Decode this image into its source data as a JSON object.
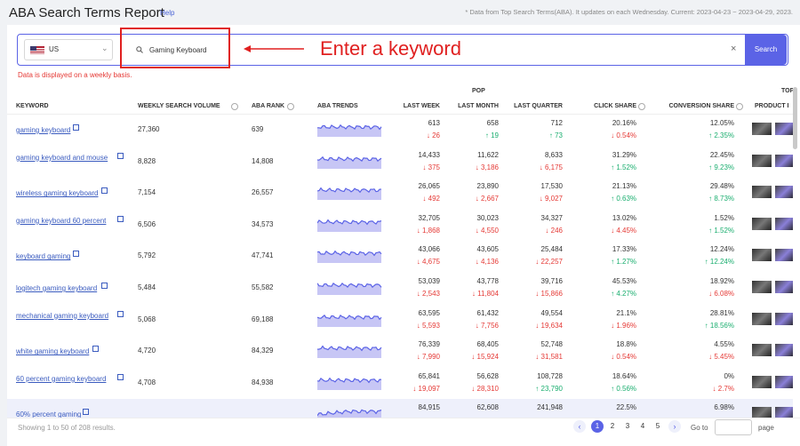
{
  "header": {
    "title": "ABA Search Terms Report",
    "help": "Help",
    "note": "* Data from Top Search Terms(ABA). It updates on each Wednesday. Current: 2023-04-23 ~ 2023-04-29, 2023."
  },
  "search": {
    "country": "US",
    "keyword": "Gaming Keyboard",
    "button": "Search",
    "hint": "Data is displayed on a weekly basis."
  },
  "annotation": "Enter a keyword",
  "table": {
    "groups": {
      "pop": "POP",
      "top": "TOP"
    },
    "columns": [
      "KEYWORD",
      "WEEKLY SEARCH VOLUME",
      "ABA RANK",
      "ABA TRENDS",
      "LAST WEEK",
      "LAST MONTH",
      "LAST QUARTER",
      "CLICK SHARE",
      "CONVERSION SHARE",
      "PRODUCT I"
    ],
    "rows": [
      {
        "keyword": "gaming keyboard",
        "volume": "27,360",
        "rank": "639",
        "last_week": [
          "613",
          "↓ 26"
        ],
        "last_month": [
          "658",
          "↑ 19"
        ],
        "last_quarter": [
          "712",
          "↑ 73"
        ],
        "click_share": [
          "20.16%",
          "↓ 0.54%"
        ],
        "conversion_share": [
          "12.05%",
          "↑ 2.35%"
        ]
      },
      {
        "keyword": "gaming keyboard and mouse",
        "volume": "8,828",
        "rank": "14,808",
        "last_week": [
          "14,433",
          "↓ 375"
        ],
        "last_month": [
          "11,622",
          "↓ 3,186"
        ],
        "last_quarter": [
          "8,633",
          "↓ 6,175"
        ],
        "click_share": [
          "31.29%",
          "↑ 1.52%"
        ],
        "conversion_share": [
          "22.45%",
          "↑ 9.23%"
        ]
      },
      {
        "keyword": "wireless gaming keyboard",
        "volume": "7,154",
        "rank": "26,557",
        "last_week": [
          "26,065",
          "↓ 492"
        ],
        "last_month": [
          "23,890",
          "↓ 2,667"
        ],
        "last_quarter": [
          "17,530",
          "↓ 9,027"
        ],
        "click_share": [
          "21.13%",
          "↑ 0.63%"
        ],
        "conversion_share": [
          "29.48%",
          "↑ 8.73%"
        ]
      },
      {
        "keyword": "gaming keyboard 60 percent",
        "volume": "6,506",
        "rank": "34,573",
        "last_week": [
          "32,705",
          "↓ 1,868"
        ],
        "last_month": [
          "30,023",
          "↓ 4,550"
        ],
        "last_quarter": [
          "34,327",
          "↓ 246"
        ],
        "click_share": [
          "13.02%",
          "↓ 4.45%"
        ],
        "conversion_share": [
          "1.52%",
          "↑ 1.52%"
        ]
      },
      {
        "keyword": "keyboard gaming",
        "volume": "5,792",
        "rank": "47,741",
        "last_week": [
          "43,066",
          "↓ 4,675"
        ],
        "last_month": [
          "43,605",
          "↓ 4,136"
        ],
        "last_quarter": [
          "25,484",
          "↓ 22,257"
        ],
        "click_share": [
          "17.33%",
          "↑ 1.27%"
        ],
        "conversion_share": [
          "12.24%",
          "↑ 12.24%"
        ]
      },
      {
        "keyword": "logitech gaming keyboard",
        "volume": "5,484",
        "rank": "55,582",
        "last_week": [
          "53,039",
          "↓ 2,543"
        ],
        "last_month": [
          "43,778",
          "↓ 11,804"
        ],
        "last_quarter": [
          "39,716",
          "↓ 15,866"
        ],
        "click_share": [
          "45.53%",
          "↑ 4.27%"
        ],
        "conversion_share": [
          "18.92%",
          "↓ 6.08%"
        ]
      },
      {
        "keyword": "mechanical gaming keyboard",
        "volume": "5,068",
        "rank": "69,188",
        "last_week": [
          "63,595",
          "↓ 5,593"
        ],
        "last_month": [
          "61,432",
          "↓ 7,756"
        ],
        "last_quarter": [
          "49,554",
          "↓ 19,634"
        ],
        "click_share": [
          "21.1%",
          "↓ 1.96%"
        ],
        "conversion_share": [
          "28.81%",
          "↑ 18.56%"
        ]
      },
      {
        "keyword": "white gaming keyboard",
        "volume": "4,720",
        "rank": "84,329",
        "last_week": [
          "76,339",
          "↓ 7,990"
        ],
        "last_month": [
          "68,405",
          "↓ 15,924"
        ],
        "last_quarter": [
          "52,748",
          "↓ 31,581"
        ],
        "click_share": [
          "18.8%",
          "↓ 0.54%"
        ],
        "conversion_share": [
          "4.55%",
          "↓ 5.45%"
        ]
      },
      {
        "keyword": "60 percent gaming keyboard",
        "volume": "4,708",
        "rank": "84,938",
        "last_week": [
          "65,841",
          "↓ 19,097"
        ],
        "last_month": [
          "56,628",
          "↓ 28,310"
        ],
        "last_quarter": [
          "108,728",
          "↑ 23,790"
        ],
        "click_share": [
          "18.64%",
          "↑ 0.56%"
        ],
        "conversion_share": [
          "0%",
          "↓ 2.7%"
        ]
      },
      {
        "keyword": "60% percent gaming",
        "last_week": [
          "84,915"
        ],
        "last_month": [
          "62,608"
        ],
        "last_quarter": [
          "241,948"
        ],
        "click_share": [
          "22.5%"
        ],
        "conversion_share": [
          "6.98%"
        ]
      }
    ]
  },
  "footer": {
    "summary": "Showing 1 to 50 of 208 results.",
    "pages": [
      "1",
      "2",
      "3",
      "4",
      "5"
    ],
    "goto": "Go to",
    "page": "page"
  }
}
